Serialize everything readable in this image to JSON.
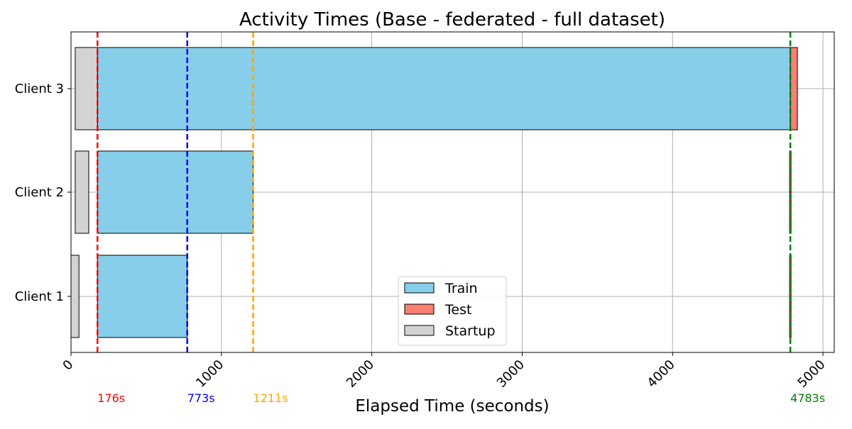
{
  "chart_data": {
    "type": "bar",
    "orientation": "horizontal",
    "title": "Activity Times (Base - federated - full dataset)",
    "xlabel": "Elapsed Time (seconds)",
    "ylabel": "",
    "xlim": [
      0,
      5075
    ],
    "xticks": [
      0,
      1000,
      2000,
      3000,
      4000,
      5000
    ],
    "xtick_labels": [
      "0",
      "1000",
      "2000",
      "3000",
      "4000",
      "5000"
    ],
    "grid": true,
    "categories": [
      "Client 1",
      "Client 2",
      "Client 3"
    ],
    "series": [
      {
        "name": "Train",
        "color": "#87ceeb",
        "bars": [
          {
            "client": "Client 1",
            "start": 176,
            "end": 773
          },
          {
            "client": "Client 2",
            "start": 176,
            "end": 1211
          },
          {
            "client": "Client 3",
            "start": 176,
            "end": 4783
          }
        ]
      },
      {
        "name": "Test",
        "color": "#fa8072",
        "bars": [
          {
            "client": "Client 1",
            "start": 4778,
            "end": 4788
          },
          {
            "client": "Client 2",
            "start": 4778,
            "end": 4788
          },
          {
            "client": "Client 3",
            "start": 4783,
            "end": 4830
          }
        ]
      },
      {
        "name": "Startup",
        "color": "#d3d3d3",
        "bars": [
          {
            "client": "Client 1",
            "start": 0,
            "end": 53
          },
          {
            "client": "Client 2",
            "start": 28,
            "end": 118
          },
          {
            "client": "Client 3",
            "start": 28,
            "end": 176
          }
        ]
      }
    ],
    "vlines": [
      {
        "x": 176,
        "label": "176s",
        "color": "#ff0000"
      },
      {
        "x": 773,
        "label": "773s",
        "color": "#0000ff"
      },
      {
        "x": 1211,
        "label": "1211s",
        "color": "#ffa500"
      },
      {
        "x": 4783,
        "label": "4783s",
        "color": "#008000"
      }
    ],
    "legend": {
      "placement": "lower-center",
      "entries": [
        "Train",
        "Test",
        "Startup"
      ]
    }
  }
}
